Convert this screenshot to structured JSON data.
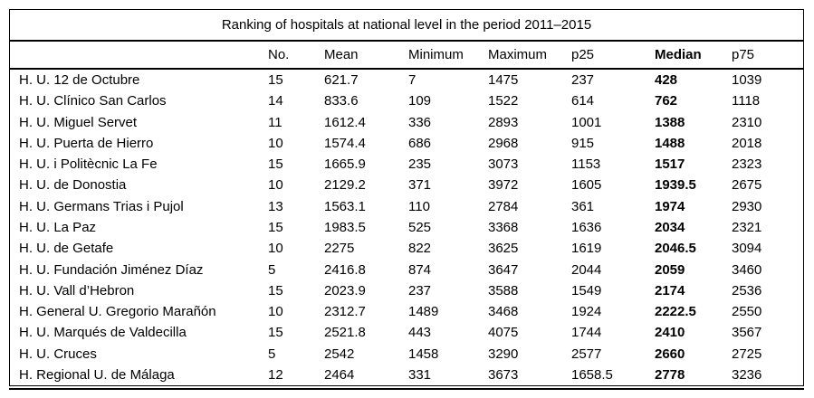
{
  "colors": {
    "background": "#ffffff",
    "text": "#000000",
    "rule": "#000000"
  },
  "table": {
    "title": "Ranking of hospitals at national level in the period 2011–2015",
    "columns": [
      "No.",
      "Mean",
      "Minimum",
      "Maximum",
      "p25",
      "Median",
      "p75"
    ],
    "rows": [
      {
        "name": "H. U. 12 de Octubre",
        "values": [
          "15",
          "621.7",
          "7",
          "1475",
          "237",
          "428",
          "1039"
        ]
      },
      {
        "name": "H. U. Clínico San Carlos",
        "values": [
          "14",
          "833.6",
          "109",
          "1522",
          "614",
          "762",
          "1118"
        ]
      },
      {
        "name": "H. U. Miguel Servet",
        "values": [
          "11",
          "1612.4",
          "336",
          "2893",
          "1001",
          "1388",
          "2310"
        ]
      },
      {
        "name": "H. U. Puerta de Hierro",
        "values": [
          "10",
          "1574.4",
          "686",
          "2968",
          "915",
          "1488",
          "2018"
        ]
      },
      {
        "name": "H. U. i Politècnic La Fe",
        "values": [
          "15",
          "1665.9",
          "235",
          "3073",
          "1153",
          "1517",
          "2323"
        ]
      },
      {
        "name": "H. U. de Donostia",
        "values": [
          "10",
          "2129.2",
          "371",
          "3972",
          "1605",
          "1939.5",
          "2675"
        ]
      },
      {
        "name": "H. U. Germans Trias i Pujol",
        "values": [
          "13",
          "1563.1",
          "110",
          "2784",
          "361",
          "1974",
          "2930"
        ]
      },
      {
        "name": "H. U. La Paz",
        "values": [
          "15",
          "1983.5",
          "525",
          "3368",
          "1636",
          "2034",
          "2321"
        ]
      },
      {
        "name": "H. U. de Getafe",
        "values": [
          "10",
          "2275",
          "822",
          "3625",
          "1619",
          "2046.5",
          "3094"
        ]
      },
      {
        "name": "H. U. Fundación Jiménez Díaz",
        "values": [
          "5",
          "2416.8",
          "874",
          "3647",
          "2044",
          "2059",
          "3460"
        ]
      },
      {
        "name": "H. U. Vall d’Hebron",
        "values": [
          "15",
          "2023.9",
          "237",
          "3588",
          "1549",
          "2174",
          "2536"
        ]
      },
      {
        "name": "H. General U. Gregorio Marañón",
        "values": [
          "10",
          "2312.7",
          "1489",
          "3468",
          "1924",
          "2222.5",
          "2550"
        ]
      },
      {
        "name": "H. U. Marqués de Valdecilla",
        "values": [
          "15",
          "2521.8",
          "443",
          "4075",
          "1744",
          "2410",
          "3567"
        ]
      },
      {
        "name": "H. U. Cruces",
        "values": [
          "5",
          "2542",
          "1458",
          "3290",
          "2577",
          "2660",
          "2725"
        ]
      },
      {
        "name": "H. Regional U. de Málaga",
        "values": [
          "12",
          "2464",
          "331",
          "3673",
          "1658.5",
          "2778",
          "3236"
        ]
      }
    ]
  }
}
